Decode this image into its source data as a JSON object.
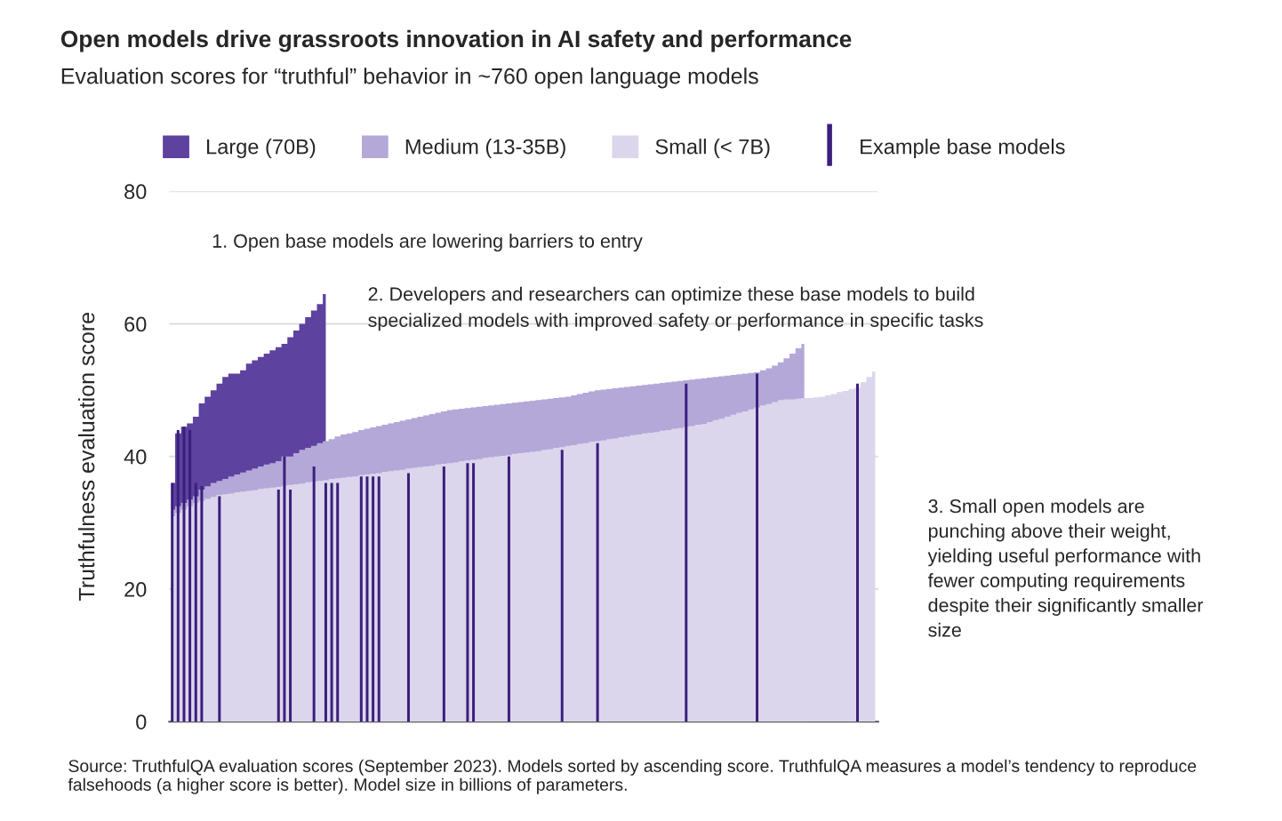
{
  "chart_data": {
    "type": "bar",
    "title": "Open models drive grassroots innovation in AI safety and performance",
    "subtitle": "Evaluation scores for “truthful” behavior in ~760 open language models",
    "ylabel": "Truthfulness evaluation score",
    "categories": [
      null,
      null,
      null,
      null,
      null,
      null,
      null,
      null,
      null,
      null,
      null,
      null,
      null,
      null,
      null,
      null,
      null,
      null,
      null,
      null,
      null,
      null,
      null,
      null,
      null,
      null,
      null,
      null,
      null,
      null,
      null,
      null,
      null,
      null,
      null,
      null,
      null,
      null,
      null,
      null,
      null,
      null,
      null,
      null,
      null,
      null,
      null,
      null,
      null,
      null,
      null,
      null,
      null,
      null,
      null,
      null,
      null,
      null,
      null,
      null,
      null,
      null,
      null,
      null,
      null,
      null,
      null,
      null,
      null,
      null,
      null,
      null,
      null,
      null,
      null,
      null,
      null,
      null,
      null,
      null,
      null,
      null,
      null,
      null,
      null,
      null,
      null,
      null,
      null,
      null,
      null,
      null,
      null,
      null,
      null,
      null,
      null,
      null,
      null,
      null,
      null,
      null,
      null,
      null,
      null,
      null,
      null,
      null,
      null,
      null,
      null,
      null,
      null,
      null,
      null,
      null,
      null,
      null,
      null,
      null
    ],
    "series": [
      {
        "name": "Large (70B)",
        "type": "area",
        "color": "#5d429f",
        "values": [
          36,
          43.5,
          44.5,
          45,
          46,
          48,
          49,
          50,
          51,
          52,
          52.5,
          52.5,
          53,
          54,
          54.5,
          55,
          55.5,
          56,
          56.5,
          57,
          58,
          59,
          60,
          61,
          62,
          63,
          64.5,
          null,
          null,
          null,
          null,
          null,
          null,
          null,
          null,
          null,
          null,
          null,
          null,
          null,
          null,
          null,
          null,
          null,
          null,
          null,
          null,
          null,
          null,
          null,
          null,
          null,
          null,
          null,
          null,
          null,
          null,
          null,
          null,
          null,
          null,
          null,
          null,
          null,
          null,
          null,
          null,
          null,
          null,
          null,
          null,
          null,
          null,
          null,
          null,
          null,
          null,
          null,
          null,
          null,
          null,
          null,
          null,
          null,
          null,
          null,
          null,
          null,
          null,
          null,
          null,
          null,
          null,
          null,
          null,
          null,
          null,
          null,
          null,
          null,
          null,
          null,
          null,
          null,
          null,
          null,
          null,
          null,
          null,
          null,
          null,
          null,
          null,
          null,
          null,
          null,
          null,
          null,
          null,
          null
        ]
      },
      {
        "name": "Medium (13-35B)",
        "type": "area",
        "color": "#b4a8d9",
        "values": [
          32.0,
          32.5,
          33.0,
          33.5,
          34.0,
          35.0,
          35.5,
          36.0,
          36.3,
          36.6,
          37.0,
          37.3,
          37.6,
          37.9,
          38.2,
          38.5,
          38.8,
          39.0,
          39.3,
          40.0,
          40.0,
          40.5,
          41.0,
          41.3,
          41.6,
          42.0,
          42.3,
          42.6,
          43.0,
          43.3,
          43.5,
          43.7,
          44.0,
          44.2,
          44.4,
          44.6,
          44.8,
          45.0,
          45.2,
          45.4,
          45.6,
          45.8,
          46.0,
          46.2,
          46.4,
          46.6,
          46.8,
          47.0,
          47.1,
          47.2,
          47.3,
          47.4,
          47.5,
          47.6,
          47.7,
          47.8,
          47.9,
          48.0,
          48.1,
          48.2,
          48.3,
          48.4,
          48.5,
          48.6,
          48.7,
          48.8,
          48.9,
          49.0,
          49.2,
          49.4,
          49.6,
          49.8,
          50.0,
          50.1,
          50.2,
          50.3,
          50.4,
          50.5,
          50.6,
          50.7,
          50.8,
          50.9,
          51.0,
          51.1,
          51.2,
          51.3,
          51.4,
          51.5,
          51.6,
          51.7,
          51.8,
          51.9,
          52.0,
          52.1,
          52.2,
          52.3,
          52.4,
          52.5,
          52.6,
          52.7,
          53.0,
          53.3,
          53.7,
          54.2,
          54.8,
          55.5,
          56.3,
          57.0,
          null,
          null,
          null,
          null,
          null,
          null,
          null,
          null,
          null,
          null,
          null,
          null
        ]
      },
      {
        "name": "Small (< 7B)",
        "type": "area",
        "color": "#dcd6ec",
        "values": [
          31.0,
          31.5,
          32.0,
          32.5,
          33.0,
          33.3,
          33.6,
          33.9,
          34.2,
          34.3,
          34.4,
          34.6,
          34.7,
          34.8,
          34.9,
          35.1,
          35.2,
          35.3,
          35.4,
          35.6,
          35.7,
          35.8,
          35.9,
          36.1,
          36.2,
          36.3,
          36.4,
          36.6,
          36.7,
          36.8,
          36.9,
          37.0,
          37.2,
          37.3,
          37.4,
          37.5,
          37.7,
          37.8,
          37.9,
          38.0,
          38.2,
          38.3,
          38.4,
          38.5,
          38.6,
          38.8,
          38.9,
          39.0,
          39.1,
          39.3,
          39.4,
          39.5,
          39.6,
          39.8,
          39.9,
          40.0,
          40.1,
          40.2,
          40.4,
          40.5,
          40.6,
          40.7,
          40.8,
          41.0,
          41.1,
          41.3,
          41.4,
          41.6,
          41.7,
          41.9,
          42.0,
          42.2,
          42.3,
          42.4,
          42.6,
          42.7,
          42.9,
          43.0,
          43.2,
          43.3,
          43.5,
          43.6,
          43.7,
          43.9,
          44.0,
          44.2,
          44.3,
          44.5,
          44.6,
          44.8,
          44.9,
          45.2,
          45.5,
          45.7,
          46.0,
          46.3,
          46.6,
          46.8,
          47.1,
          47.4,
          47.7,
          47.9,
          48.2,
          48.5,
          48.6,
          48.6,
          48.7,
          48.8,
          48.8,
          48.9,
          49.0,
          49.2,
          49.4,
          49.7,
          49.9,
          50.2,
          50.4,
          51.2,
          52.0,
          52.8
        ]
      },
      {
        "name": "Example base models",
        "color": "#3a1f7c",
        "values": [
          36,
          44,
          44.5,
          44,
          36,
          35.5,
          null,
          null,
          34,
          null,
          null,
          null,
          null,
          null,
          null,
          null,
          null,
          null,
          35,
          40,
          35,
          null,
          null,
          null,
          38.5,
          null,
          36,
          36,
          36,
          null,
          null,
          null,
          37,
          37,
          37,
          37,
          null,
          null,
          null,
          null,
          37.5,
          null,
          null,
          null,
          null,
          null,
          38.5,
          null,
          null,
          null,
          39,
          39,
          null,
          null,
          null,
          null,
          null,
          40,
          null,
          null,
          null,
          null,
          null,
          null,
          null,
          null,
          41,
          null,
          null,
          null,
          null,
          null,
          42,
          null,
          null,
          null,
          null,
          null,
          null,
          null,
          null,
          null,
          null,
          null,
          null,
          null,
          null,
          51,
          null,
          null,
          null,
          null,
          null,
          null,
          null,
          null,
          null,
          null,
          null,
          52.5,
          null,
          null,
          null,
          null,
          null,
          null,
          null,
          null,
          null,
          null,
          null,
          null,
          null,
          null,
          null,
          null,
          51,
          null,
          null,
          null
        ]
      }
    ],
    "ylim": [
      0,
      80
    ],
    "yticks": [
      0,
      20,
      40,
      60,
      80
    ],
    "grid": "y",
    "legend": "top",
    "tick_labels": "y",
    "annotations": [
      "1. Open base models are lowering barriers to entry",
      "2. Developers and researchers can optimize these base models to build specialized models with improved safety or performance in specific tasks",
      "3. Small open models are punching above their weight, yielding useful performance with fewer computing requirements despite their significantly smaller size",
      "Source: TruthfulQA evaluation scores (September 2023). Models sorted by ascending score. TruthfulQA measures a model’s tendency to reproduce falsehoods (a higher score is better). Model size in billions of parameters."
    ]
  }
}
